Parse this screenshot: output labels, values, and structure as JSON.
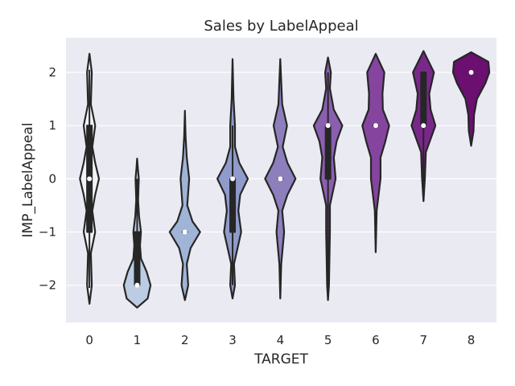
{
  "chart_data": {
    "type": "violin",
    "title": "Sales by LabelAppeal",
    "xlabel": "TARGET",
    "ylabel": "IMP_LabelAppeal",
    "categories": [
      "0",
      "1",
      "2",
      "3",
      "4",
      "5",
      "6",
      "7",
      "8"
    ],
    "yticks": [
      -2,
      -1,
      0,
      1,
      2
    ],
    "ytick_labels": [
      "−2",
      "−1",
      "0",
      "1",
      "2"
    ],
    "ylim": [
      -2.7,
      2.65
    ],
    "grid": true,
    "colors": {
      "background": "#EAEAF2",
      "grid": "#FFFFFF",
      "outline": "#262626",
      "palette": [
        "#F0F4F9",
        "#BCCDE3",
        "#9FB4D6",
        "#8F9BCA",
        "#8C7FBC",
        "#8B5FAF",
        "#85459F",
        "#7A278A",
        "#6B0F71"
      ]
    },
    "violins": [
      {
        "category": "0",
        "median": 0,
        "q1": -1,
        "q3": 1,
        "whisker_low": -2.05,
        "whisker_high": 2.05,
        "extent": [
          -2.35,
          2.35
        ],
        "density": [
          {
            "y": -2.35,
            "w": 0.0
          },
          {
            "y": -2.0,
            "w": 0.05
          },
          {
            "y": -1.4,
            "w": 0.03
          },
          {
            "y": -1.0,
            "w": 0.12
          },
          {
            "y": -0.6,
            "w": 0.06
          },
          {
            "y": -0.3,
            "w": 0.12
          },
          {
            "y": 0.0,
            "w": 0.2
          },
          {
            "y": 0.3,
            "w": 0.12
          },
          {
            "y": 0.6,
            "w": 0.06
          },
          {
            "y": 1.0,
            "w": 0.12
          },
          {
            "y": 1.4,
            "w": 0.03
          },
          {
            "y": 2.0,
            "w": 0.05
          },
          {
            "y": 2.35,
            "w": 0.0
          }
        ]
      },
      {
        "category": "1",
        "median": -2,
        "q1": -2,
        "q3": -1,
        "whisker_low": -2.0,
        "whisker_high": 0.0,
        "extent": [
          -2.42,
          0.38
        ],
        "density": [
          {
            "y": -2.42,
            "w": 0.0
          },
          {
            "y": -2.25,
            "w": 0.22
          },
          {
            "y": -2.0,
            "w": 0.28
          },
          {
            "y": -1.75,
            "w": 0.2
          },
          {
            "y": -1.5,
            "w": 0.08
          },
          {
            "y": -1.25,
            "w": 0.06
          },
          {
            "y": -1.0,
            "w": 0.08
          },
          {
            "y": -0.7,
            "w": 0.04
          },
          {
            "y": -0.4,
            "w": 0.02
          },
          {
            "y": 0.0,
            "w": 0.035
          },
          {
            "y": 0.2,
            "w": 0.015
          },
          {
            "y": 0.38,
            "w": 0.0
          }
        ]
      },
      {
        "category": "2",
        "median": -1,
        "q1": -1,
        "q3": -1,
        "whisker_low": -1.0,
        "whisker_high": -1.0,
        "extent": [
          -2.28,
          1.28
        ],
        "density": [
          {
            "y": -2.28,
            "w": 0.0
          },
          {
            "y": -2.0,
            "w": 0.07
          },
          {
            "y": -1.6,
            "w": 0.04
          },
          {
            "y": -1.3,
            "w": 0.12
          },
          {
            "y": -1.0,
            "w": 0.32
          },
          {
            "y": -0.8,
            "w": 0.16
          },
          {
            "y": -0.5,
            "w": 0.05
          },
          {
            "y": 0.0,
            "w": 0.09
          },
          {
            "y": 0.4,
            "w": 0.04
          },
          {
            "y": 0.8,
            "w": 0.015
          },
          {
            "y": 1.28,
            "w": 0.0
          }
        ]
      },
      {
        "category": "3",
        "median": 0,
        "q1": -1,
        "q3": 0,
        "whisker_low": -2.0,
        "whisker_high": 1.0,
        "extent": [
          -2.25,
          2.25
        ],
        "density": [
          {
            "y": -2.25,
            "w": 0.0
          },
          {
            "y": -2.0,
            "w": 0.05
          },
          {
            "y": -1.6,
            "w": 0.03
          },
          {
            "y": -1.0,
            "w": 0.18
          },
          {
            "y": -0.6,
            "w": 0.12
          },
          {
            "y": -0.3,
            "w": 0.16
          },
          {
            "y": 0.0,
            "w": 0.32
          },
          {
            "y": 0.3,
            "w": 0.14
          },
          {
            "y": 0.6,
            "w": 0.05
          },
          {
            "y": 1.0,
            "w": 0.05
          },
          {
            "y": 1.5,
            "w": 0.02
          },
          {
            "y": 2.25,
            "w": 0.0
          }
        ]
      },
      {
        "category": "4",
        "median": 0,
        "q1": 0,
        "q3": 0,
        "whisker_low": 0.0,
        "whisker_high": 0.0,
        "extent": [
          -2.25,
          2.25
        ],
        "density": [
          {
            "y": -2.25,
            "w": 0.0
          },
          {
            "y": -1.6,
            "w": 0.02
          },
          {
            "y": -1.0,
            "w": 0.08
          },
          {
            "y": -0.6,
            "w": 0.04
          },
          {
            "y": -0.3,
            "w": 0.15
          },
          {
            "y": 0.0,
            "w": 0.32
          },
          {
            "y": 0.3,
            "w": 0.15
          },
          {
            "y": 0.6,
            "w": 0.05
          },
          {
            "y": 1.0,
            "w": 0.14
          },
          {
            "y": 1.4,
            "w": 0.04
          },
          {
            "y": 2.25,
            "w": 0.0
          }
        ]
      },
      {
        "category": "5",
        "median": 1,
        "q1": 0,
        "q3": 1,
        "whisker_low": -2.0,
        "whisker_high": 2.0,
        "extent": [
          -2.28,
          2.28
        ],
        "density": [
          {
            "y": -2.28,
            "w": 0.0
          },
          {
            "y": -2.0,
            "w": 0.02
          },
          {
            "y": -1.0,
            "w": 0.04
          },
          {
            "y": -0.5,
            "w": 0.04
          },
          {
            "y": 0.0,
            "w": 0.16
          },
          {
            "y": 0.4,
            "w": 0.12
          },
          {
            "y": 0.7,
            "w": 0.18
          },
          {
            "y": 1.0,
            "w": 0.3
          },
          {
            "y": 1.3,
            "w": 0.12
          },
          {
            "y": 1.7,
            "w": 0.04
          },
          {
            "y": 2.0,
            "w": 0.06
          },
          {
            "y": 2.28,
            "w": 0.0
          }
        ]
      },
      {
        "category": "6",
        "median": 1,
        "q1": 1,
        "q3": 1,
        "whisker_low": 1.0,
        "whisker_high": 1.0,
        "extent": [
          -1.38,
          2.35
        ],
        "density": [
          {
            "y": -1.38,
            "w": 0.0
          },
          {
            "y": -0.6,
            "w": 0.02
          },
          {
            "y": 0.0,
            "w": 0.1
          },
          {
            "y": 0.4,
            "w": 0.1
          },
          {
            "y": 0.7,
            "w": 0.2
          },
          {
            "y": 1.0,
            "w": 0.28
          },
          {
            "y": 1.3,
            "w": 0.15
          },
          {
            "y": 1.6,
            "w": 0.14
          },
          {
            "y": 2.0,
            "w": 0.18
          },
          {
            "y": 2.35,
            "w": 0.0
          }
        ]
      },
      {
        "category": "7",
        "median": 1,
        "q1": 1,
        "q3": 2,
        "whisker_low": -0.4,
        "whisker_high": 2.0,
        "extent": [
          -0.42,
          2.4
        ],
        "density": [
          {
            "y": -0.42,
            "w": 0.0
          },
          {
            "y": 0.0,
            "w": 0.03
          },
          {
            "y": 0.5,
            "w": 0.05
          },
          {
            "y": 1.0,
            "w": 0.25
          },
          {
            "y": 1.3,
            "w": 0.15
          },
          {
            "y": 1.6,
            "w": 0.12
          },
          {
            "y": 2.0,
            "w": 0.22
          },
          {
            "y": 2.4,
            "w": 0.0
          }
        ]
      },
      {
        "category": "8",
        "median": 2,
        "q1": 2,
        "q3": 2,
        "whisker_low": 2.0,
        "whisker_high": 2.0,
        "extent": [
          0.62,
          2.38
        ],
        "density": [
          {
            "y": 0.62,
            "w": 0.0
          },
          {
            "y": 0.9,
            "w": 0.05
          },
          {
            "y": 1.2,
            "w": 0.06
          },
          {
            "y": 1.5,
            "w": 0.12
          },
          {
            "y": 1.8,
            "w": 0.3
          },
          {
            "y": 2.0,
            "w": 0.38
          },
          {
            "y": 2.2,
            "w": 0.36
          },
          {
            "y": 2.38,
            "w": 0.0
          }
        ]
      }
    ]
  }
}
